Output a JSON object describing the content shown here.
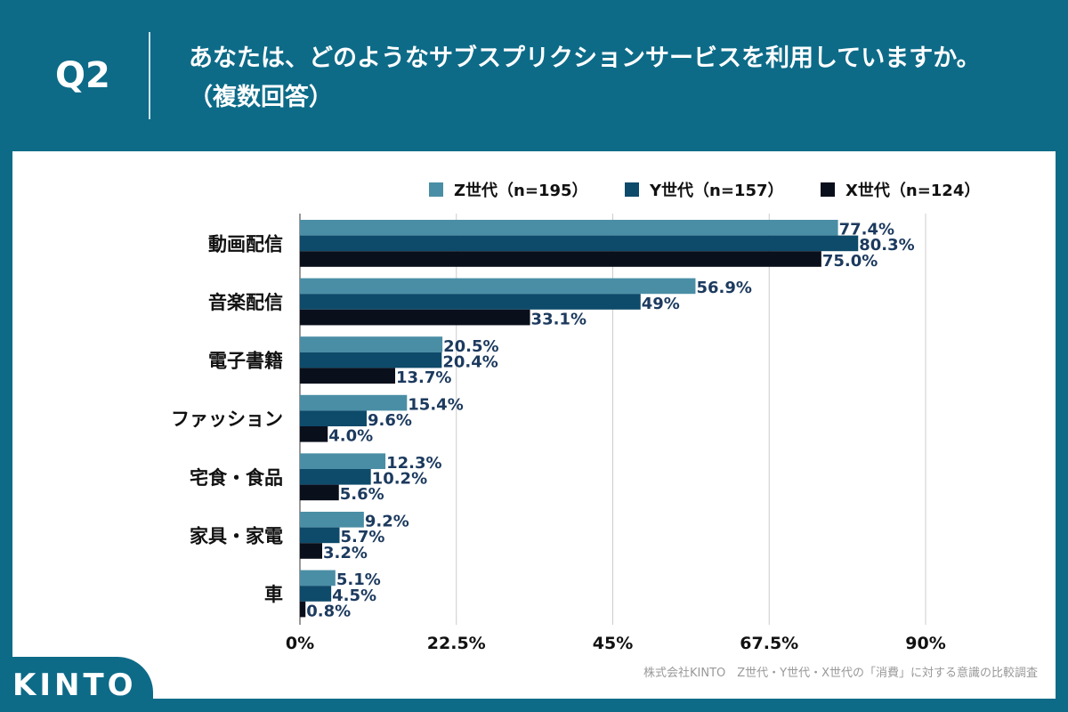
{
  "header": {
    "question": "Q2",
    "title": "あなたは、どのようなサブスプリクションサービスを利用していますか。（複数回答）"
  },
  "footer": {
    "logo": "KINTO",
    "source": "株式会社KINTO　Z世代・Y世代・X世代の「消費」に対する意識の比較調査"
  },
  "chart_data": {
    "type": "bar",
    "orientation": "horizontal",
    "categories": [
      "動画配信",
      "音楽配信",
      "電子書籍",
      "ファッション",
      "宅食・食品",
      "家具・家電",
      "車"
    ],
    "series": [
      {
        "name": "Z世代（n=195）",
        "color": "#4a8ea5",
        "values": [
          77.4,
          56.9,
          20.5,
          15.4,
          12.3,
          9.2,
          5.1
        ],
        "labels": [
          "77.4%",
          "56.9%",
          "20.5%",
          "15.4%",
          "12.3%",
          "9.2%",
          "5.1%"
        ]
      },
      {
        "name": "Y世代（n=157）",
        "color": "#0e4a6a",
        "values": [
          80.3,
          49,
          20.4,
          9.6,
          10.2,
          5.7,
          4.5
        ],
        "labels": [
          "80.3%",
          "49%",
          "20.4%",
          "9.6%",
          "10.2%",
          "5.7%",
          "4.5%"
        ]
      },
      {
        "name": "X世代（n=124）",
        "color": "#0a0f1c",
        "values": [
          75.0,
          33.1,
          13.7,
          4.0,
          5.6,
          3.2,
          0.8
        ],
        "labels": [
          "75.0%",
          "33.1%",
          "13.7%",
          "4.0%",
          "5.6%",
          "3.2%",
          "0.8%"
        ]
      }
    ],
    "xlim": [
      0,
      90
    ],
    "xticks": [
      "0%",
      "22.5%",
      "45%",
      "67.5%",
      "90%"
    ],
    "xtick_values": [
      0,
      22.5,
      45,
      67.5,
      90
    ],
    "grid": true,
    "legend": "top-right",
    "label_color": "#1c3a5e"
  }
}
